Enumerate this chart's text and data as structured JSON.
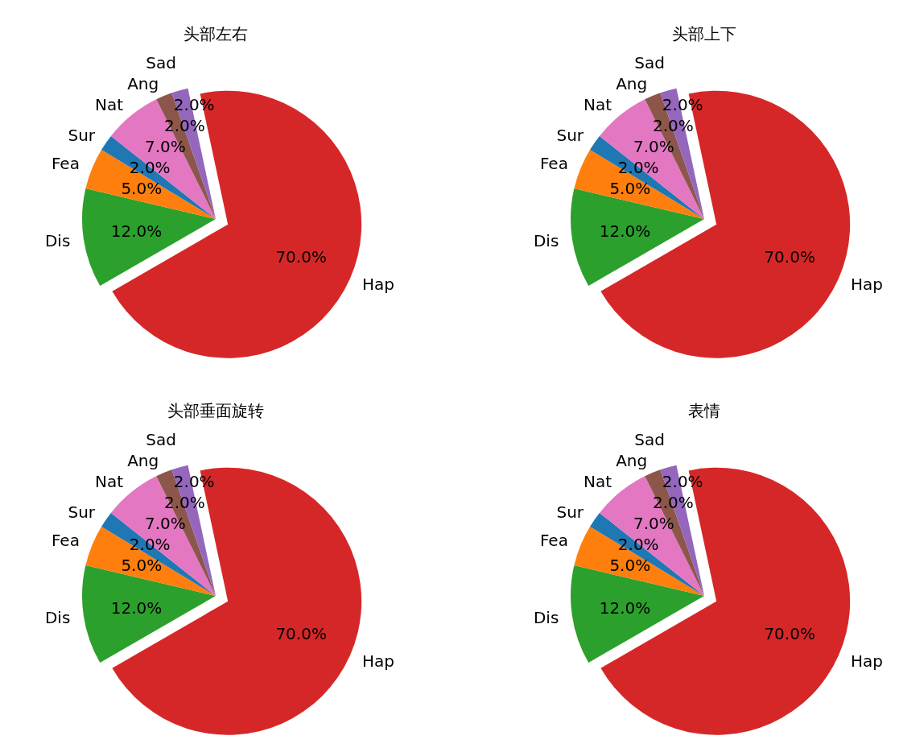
{
  "chart_data": [
    {
      "type": "pie",
      "title": "头部左右",
      "categories": [
        "Hap",
        "Dis",
        "Fea",
        "Sur",
        "Nat",
        "Ang",
        "Sad"
      ],
      "values": [
        70,
        12,
        5,
        2,
        7,
        2,
        2
      ],
      "value_labels": [
        "70.0%",
        "12.0%",
        "5.0%",
        "2.0%",
        "7.0%",
        "2.0%",
        "2.0%"
      ],
      "colors": [
        "#d62728",
        "#2ca02c",
        "#ff7f0e",
        "#1f77b4",
        "#e377c2",
        "#8c564b",
        "#9467bd"
      ]
    },
    {
      "type": "pie",
      "title": "头部上下",
      "categories": [
        "Hap",
        "Dis",
        "Fea",
        "Sur",
        "Nat",
        "Ang",
        "Sad"
      ],
      "values": [
        70,
        12,
        5,
        2,
        7,
        2,
        2
      ],
      "value_labels": [
        "70.0%",
        "12.0%",
        "5.0%",
        "2.0%",
        "7.0%",
        "2.0%",
        "2.0%"
      ],
      "colors": [
        "#d62728",
        "#2ca02c",
        "#ff7f0e",
        "#1f77b4",
        "#e377c2",
        "#8c564b",
        "#9467bd"
      ]
    },
    {
      "type": "pie",
      "title": "头部垂面旋转",
      "categories": [
        "Hap",
        "Dis",
        "Fea",
        "Sur",
        "Nat",
        "Ang",
        "Sad"
      ],
      "values": [
        70,
        12,
        5,
        2,
        7,
        2,
        2
      ],
      "value_labels": [
        "70.0%",
        "12.0%",
        "5.0%",
        "2.0%",
        "7.0%",
        "2.0%",
        "2.0%"
      ],
      "colors": [
        "#d62728",
        "#2ca02c",
        "#ff7f0e",
        "#1f77b4",
        "#e377c2",
        "#8c564b",
        "#9467bd"
      ]
    },
    {
      "type": "pie",
      "title": "表情",
      "categories": [
        "Hap",
        "Dis",
        "Fea",
        "Sur",
        "Nat",
        "Ang",
        "Sad"
      ],
      "values": [
        70,
        12,
        5,
        2,
        7,
        2,
        2
      ],
      "value_labels": [
        "70.0%",
        "12.0%",
        "5.0%",
        "2.0%",
        "7.0%",
        "2.0%",
        "2.0%"
      ],
      "colors": [
        "#d62728",
        "#2ca02c",
        "#ff7f0e",
        "#1f77b4",
        "#e377c2",
        "#8c564b",
        "#9467bd"
      ]
    }
  ]
}
